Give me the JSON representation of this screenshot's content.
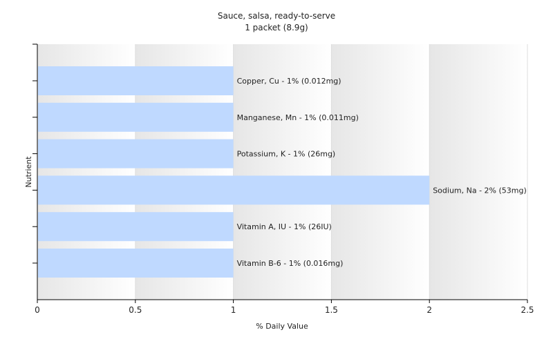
{
  "chart_data": {
    "type": "bar",
    "orientation": "horizontal",
    "title": "Sauce, salsa, ready-to-serve",
    "subtitle": "1 packet (8.9g)",
    "xlabel": "% Daily Value",
    "ylabel": "Nutrient",
    "xlim": [
      0,
      2.5
    ],
    "xticks": [
      "0",
      "0.5",
      "1",
      "1.5",
      "2",
      "2.5"
    ],
    "grid": true,
    "bar_color": "#bfd9ff",
    "categories": [
      "Copper, Cu",
      "Manganese, Mn",
      "Potassium, K",
      "Sodium, Na",
      "Vitamin A, IU",
      "Vitamin B-6"
    ],
    "values": [
      1,
      1,
      1,
      2,
      1,
      1
    ],
    "labels": [
      "Copper, Cu - 1% (0.012mg)",
      "Manganese, Mn - 1% (0.011mg)",
      "Potassium, K - 1% (26mg)",
      "Sodium, Na - 2% (53mg)",
      "Vitamin A, IU - 1% (26IU)",
      "Vitamin B-6 - 1% (0.016mg)"
    ]
  }
}
